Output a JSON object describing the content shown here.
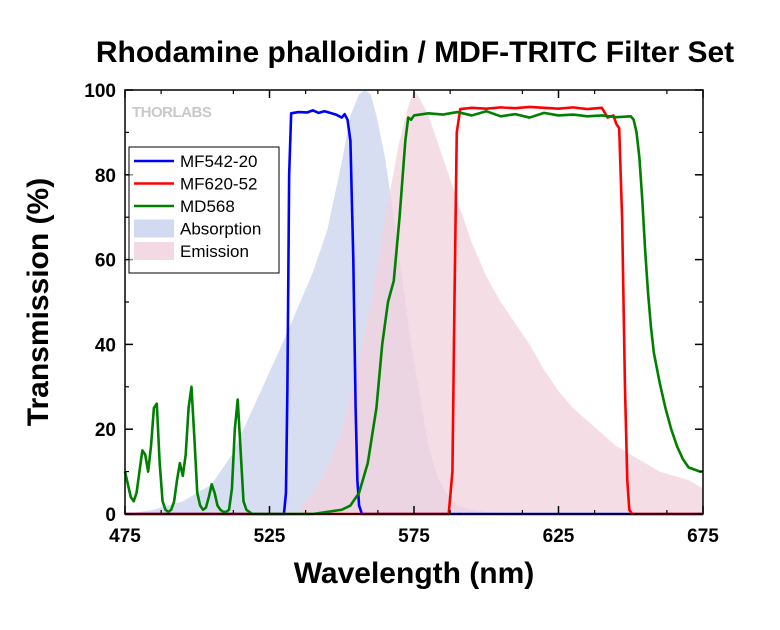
{
  "chart_data": {
    "type": "line",
    "title": "Rhodamine phalloidin / MDF-TRITC Filter Set",
    "xlabel": "Wavelength (nm)",
    "ylabel": "Transmission (%)",
    "xlim": [
      475,
      675
    ],
    "ylim": [
      0,
      100
    ],
    "x_ticks": [
      "475",
      "525",
      "575",
      "625",
      "675"
    ],
    "x_tick_values": [
      475,
      525,
      575,
      625,
      675
    ],
    "y_ticks": [
      "0",
      "20",
      "40",
      "60",
      "80",
      "100"
    ],
    "y_tick_values": [
      0,
      20,
      40,
      60,
      80,
      100
    ],
    "x_minor_step": 25,
    "y_minor_step": 10,
    "grid": false,
    "legend_position": "upper-left",
    "watermark": "THORLABS",
    "series": [
      {
        "name": "MF542-20",
        "kind": "line",
        "color": "#0000ff",
        "x": [
          475,
          530,
          530.7,
          531.2,
          531.8,
          532.5,
          535,
          538,
          540,
          542,
          544,
          546,
          548,
          550,
          551,
          552,
          553,
          554,
          554.8,
          555.4,
          556,
          557,
          675
        ],
        "y": [
          0,
          0,
          5,
          30,
          80,
          94.5,
          94.8,
          94.7,
          95.2,
          94.6,
          95.0,
          94.6,
          94.2,
          93.5,
          94.3,
          93.0,
          88,
          60,
          25,
          8,
          2,
          0,
          0
        ]
      },
      {
        "name": "MF620-52",
        "kind": "line",
        "color": "#ff0000",
        "x": [
          475,
          587,
          588.3,
          589,
          589.8,
          591,
          595,
          600,
          605,
          610,
          615,
          620,
          625,
          630,
          635,
          640,
          642,
          644,
          645,
          646,
          647,
          648,
          648.8,
          649.5,
          650.5,
          675
        ],
        "y": [
          0,
          0,
          10,
          50,
          90,
          95.5,
          95.8,
          95.6,
          95.9,
          95.7,
          96.0,
          95.8,
          95.6,
          95.9,
          95.5,
          95.8,
          93.5,
          94,
          92,
          91,
          70,
          30,
          8,
          1,
          0,
          0
        ]
      },
      {
        "name": "MD568",
        "kind": "line",
        "color": "#008000",
        "x": [
          475,
          476,
          477,
          478,
          479,
          480,
          481,
          482,
          483,
          484,
          485,
          486,
          487,
          488,
          489,
          490,
          491,
          492,
          493,
          494,
          495,
          496,
          497,
          498,
          499,
          500,
          501,
          502,
          503,
          504,
          505,
          506,
          507,
          508,
          509,
          510,
          511,
          512,
          513,
          514,
          515,
          516,
          517,
          518,
          519,
          520,
          521,
          522,
          525,
          530,
          535,
          540,
          545,
          550,
          553,
          556,
          559,
          562,
          564,
          566,
          568,
          570,
          572,
          573,
          574,
          575,
          580,
          585,
          590,
          595,
          600,
          605,
          610,
          615,
          620,
          625,
          630,
          635,
          640,
          645,
          650,
          651,
          652,
          653,
          654,
          655,
          656,
          657,
          658,
          660,
          662,
          664,
          666,
          668,
          670,
          672,
          674,
          675
        ],
        "y": [
          10,
          7,
          4,
          3,
          5,
          10,
          15,
          14,
          10,
          16,
          25,
          26,
          12,
          3,
          1,
          0.5,
          1,
          3,
          8,
          12,
          9,
          14,
          25,
          30,
          18,
          5,
          2,
          1,
          1.5,
          4,
          7,
          5,
          2,
          1,
          0.5,
          0.5,
          1,
          6,
          20,
          27,
          15,
          3,
          1,
          0.5,
          0,
          0,
          0,
          0,
          0,
          0,
          0,
          0,
          0.5,
          1,
          2,
          5,
          12,
          25,
          40,
          50,
          55,
          70,
          88,
          93.5,
          93.0,
          94.0,
          94.5,
          94.2,
          94.8,
          94.0,
          95.0,
          93.8,
          94.3,
          93.5,
          94.6,
          94.0,
          94.2,
          93.8,
          94.0,
          93.6,
          93.8,
          93.0,
          90,
          84,
          74,
          62,
          52,
          44,
          38,
          31,
          25,
          20,
          16,
          13,
          11,
          10.5,
          10,
          10
        ]
      },
      {
        "name": "Absorption",
        "kind": "area",
        "color": "#c9d3ee",
        "x": [
          475,
          485,
          495,
          505,
          512,
          518,
          524,
          530,
          535,
          540,
          545,
          550,
          553,
          556,
          558,
          560,
          562,
          565,
          568,
          571,
          574,
          577,
          580,
          583,
          586,
          590,
          595,
          600,
          610,
          620,
          675
        ],
        "y": [
          0,
          1,
          3,
          7,
          14,
          23,
          32,
          41,
          49,
          57,
          67,
          83,
          94,
          99,
          100,
          99,
          94,
          84,
          70,
          55,
          40,
          28,
          16,
          9,
          5,
          2,
          1,
          0.5,
          0,
          0,
          0
        ]
      },
      {
        "name": "Emission",
        "kind": "area",
        "color": "#f1d2de",
        "x": [
          536,
          540,
          545,
          550,
          555,
          560,
          565,
          570,
          573,
          575,
          577,
          580,
          585,
          590,
          595,
          600,
          605,
          610,
          615,
          620,
          625,
          630,
          635,
          640,
          645,
          650,
          655,
          660,
          665,
          670,
          675
        ],
        "y": [
          2,
          5,
          11,
          20,
          33,
          50,
          70,
          88,
          96,
          100,
          98,
          94,
          84,
          74,
          64,
          56,
          50,
          45,
          40,
          34,
          29,
          25,
          22,
          19,
          16,
          14,
          12,
          10,
          9,
          8,
          6
        ]
      }
    ]
  }
}
